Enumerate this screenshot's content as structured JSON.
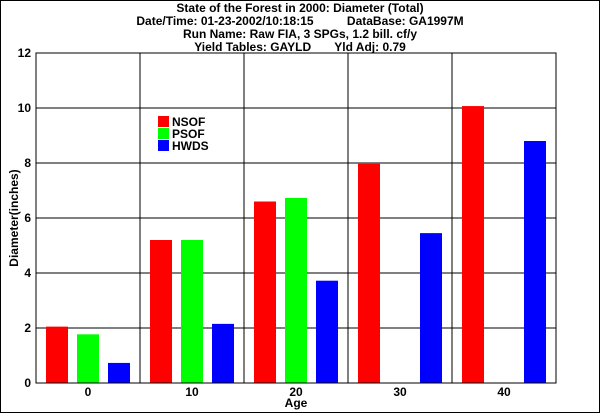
{
  "header": {
    "line1": "State of the Forest in 2000: Diameter (Total)",
    "line2": "Date/Time: 01-23-2002/10:18:15          DataBase: GA1997M",
    "line3": "Run Name: Raw FIA, 3 SPGs, 1.2 bill. cf/y",
    "line4": "Yield Tables: GAYLD       Yld Adj: 0.79"
  },
  "chart_data": {
    "type": "bar",
    "title": "State of the Forest in 2000: Diameter (Total)",
    "xlabel": "Age",
    "ylabel": "Diameter(inches)",
    "categories": [
      "0",
      "10",
      "20",
      "30",
      "40"
    ],
    "series": [
      {
        "name": "NSOF",
        "color": "#ff0000",
        "values": [
          2.05,
          5.2,
          6.6,
          7.97,
          10.07
        ]
      },
      {
        "name": "PSOF",
        "color": "#00ff00",
        "values": [
          1.77,
          5.2,
          6.73,
          0,
          0
        ]
      },
      {
        "name": "HWDS",
        "color": "#0000ff",
        "values": [
          0.73,
          2.15,
          3.72,
          5.45,
          8.8
        ]
      }
    ],
    "ylim": [
      0,
      12
    ],
    "yticks": [
      "0",
      "2",
      "4",
      "6",
      "8",
      "10",
      "12"
    ],
    "grid": true,
    "legend_position": "top-left"
  }
}
